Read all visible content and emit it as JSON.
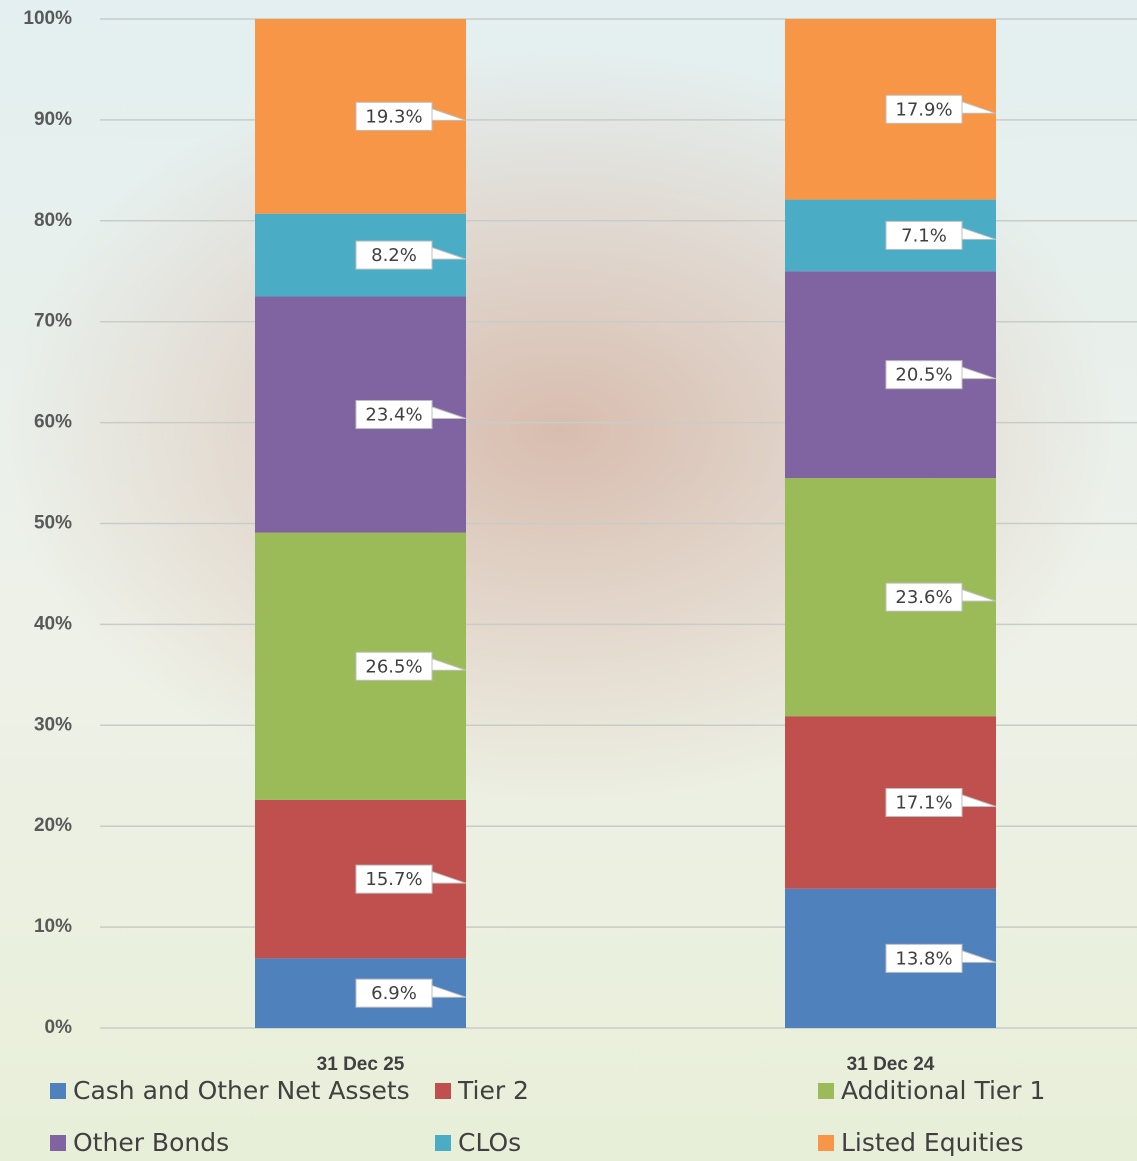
{
  "chart_data": {
    "type": "stacked_bar",
    "categories": [
      "31 Dec 25",
      "31 Dec 24"
    ],
    "series": [
      {
        "name": "Cash and Other Net Assets",
        "color": "#4f81bd",
        "values": [
          6.9,
          13.8
        ],
        "value_labels": [
          "6.9%",
          "13.8%"
        ]
      },
      {
        "name": "Tier 2",
        "color": "#c0504d",
        "values": [
          15.7,
          17.1
        ],
        "value_labels": [
          "15.7%",
          "17.1%"
        ]
      },
      {
        "name": "Additional Tier 1",
        "color": "#9bbb59",
        "values": [
          26.5,
          23.6
        ],
        "value_labels": [
          "26.5%",
          "23.6%"
        ]
      },
      {
        "name": "Other Bonds",
        "color": "#8064a2",
        "values": [
          23.4,
          20.5
        ],
        "value_labels": [
          "23.4%",
          "20.5%"
        ]
      },
      {
        "name": "CLOs",
        "color": "#4bacc6",
        "values": [
          8.2,
          7.1
        ],
        "value_labels": [
          "8.2%",
          "7.1%"
        ]
      },
      {
        "name": "Listed Equities",
        "color": "#f79646",
        "values": [
          19.3,
          17.9
        ],
        "value_labels": [
          "19.3%",
          "17.9%"
        ]
      }
    ],
    "ylim": [
      0,
      100
    ],
    "yticks": [
      {
        "value": 0,
        "label": "0%"
      },
      {
        "value": 10,
        "label": "10%"
      },
      {
        "value": 20,
        "label": "20%"
      },
      {
        "value": 30,
        "label": "30%"
      },
      {
        "value": 40,
        "label": "40%"
      },
      {
        "value": 50,
        "label": "50%"
      },
      {
        "value": 60,
        "label": "60%"
      },
      {
        "value": 70,
        "label": "70%"
      },
      {
        "value": 80,
        "label": "80%"
      },
      {
        "value": 90,
        "label": "90%"
      },
      {
        "value": 100,
        "label": "100%"
      }
    ],
    "grid": true
  }
}
